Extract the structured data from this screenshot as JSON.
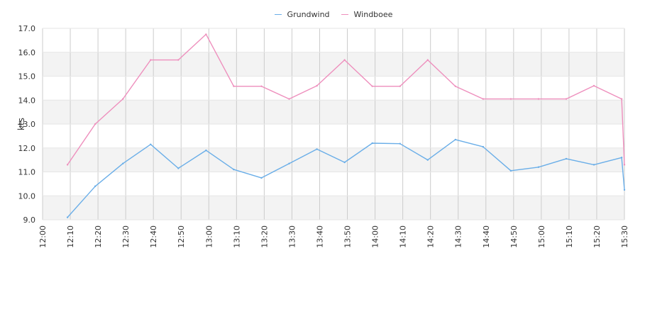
{
  "chart_data": {
    "type": "line",
    "xlabel": "",
    "ylabel": "kts",
    "ylim": [
      9,
      17
    ],
    "y_ticks": [
      "9.0",
      "10.0",
      "11.0",
      "12.0",
      "13.0",
      "14.0",
      "15.0",
      "16.0",
      "17.0"
    ],
    "x_ticks": [
      "12:00",
      "12:10",
      "12:20",
      "12:30",
      "12:40",
      "12:50",
      "13:00",
      "13:10",
      "13:20",
      "13:30",
      "13:40",
      "13:50",
      "14:00",
      "14:10",
      "14:20",
      "14:30",
      "14:40",
      "14:50",
      "15:00",
      "15:10",
      "15:20",
      "15:30"
    ],
    "x_range": [
      "12:00",
      "15:30"
    ],
    "grid": true,
    "banded_background": true,
    "legend_position": "top-center",
    "series": [
      {
        "name": "Grundwind",
        "color": "#6aaee8",
        "points": [
          [
            "12:09",
            9.1
          ],
          [
            "12:19",
            10.4
          ],
          [
            "12:29",
            11.35
          ],
          [
            "12:39",
            12.15
          ],
          [
            "12:49",
            11.15
          ],
          [
            "12:59",
            11.9
          ],
          [
            "13:09",
            11.1
          ],
          [
            "13:19",
            10.75
          ],
          [
            "13:29",
            11.35
          ],
          [
            "13:39",
            11.95
          ],
          [
            "13:49",
            11.4
          ],
          [
            "13:59",
            12.2
          ],
          [
            "14:09",
            12.18
          ],
          [
            "14:19",
            11.5
          ],
          [
            "14:29",
            12.35
          ],
          [
            "14:39",
            12.05
          ],
          [
            "14:49",
            11.05
          ],
          [
            "14:59",
            11.2
          ],
          [
            "15:09",
            11.55
          ],
          [
            "15:19",
            11.3
          ],
          [
            "15:29",
            11.6
          ],
          [
            "15:30",
            10.25
          ]
        ]
      },
      {
        "name": "Windboee",
        "color": "#ee8fbd",
        "points": [
          [
            "12:09",
            11.3
          ],
          [
            "12:19",
            13.0
          ],
          [
            "12:29",
            14.05
          ],
          [
            "12:39",
            15.68
          ],
          [
            "12:49",
            15.68
          ],
          [
            "12:59",
            16.75
          ],
          [
            "13:09",
            14.58
          ],
          [
            "13:19",
            14.58
          ],
          [
            "13:29",
            14.05
          ],
          [
            "13:39",
            14.6
          ],
          [
            "13:49",
            15.68
          ],
          [
            "13:59",
            14.58
          ],
          [
            "14:09",
            14.58
          ],
          [
            "14:19",
            15.68
          ],
          [
            "14:29",
            14.58
          ],
          [
            "14:39",
            14.05
          ],
          [
            "14:49",
            14.05
          ],
          [
            "14:59",
            14.05
          ],
          [
            "15:09",
            14.05
          ],
          [
            "15:19",
            14.6
          ],
          [
            "15:29",
            14.05
          ],
          [
            "15:30",
            11.3
          ]
        ]
      }
    ]
  }
}
